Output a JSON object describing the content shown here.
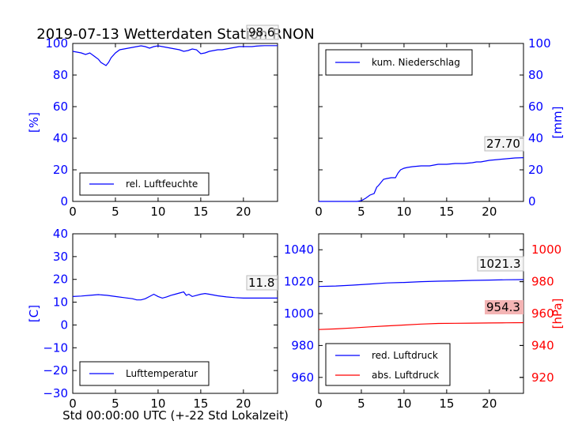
{
  "title": "2019-07-13 Wetterdaten Station RNON",
  "xlabel": "Std 00:00:00 UTC (+-22 Std Lokalzeit)",
  "colors": {
    "axis_blue": "#0000ff",
    "axis_red": "#ff0000",
    "annotation_bg_red": "#f4b4b4"
  },
  "chart_data": [
    {
      "type": "line",
      "panel": "top-left",
      "ylabel": "[%]",
      "xlim": [
        0,
        24
      ],
      "ylim": [
        0,
        100
      ],
      "xticks": [
        "0",
        "5",
        "10",
        "15",
        "20"
      ],
      "yticks": [
        "0",
        "20",
        "40",
        "60",
        "80",
        "100"
      ],
      "legend": {
        "entries": [
          "rel. Luftfeuchte"
        ],
        "location": "lower-left"
      },
      "annotation": "98.6",
      "series": [
        {
          "name": "rel. Luftfeuchte",
          "color": "#0000ff",
          "x": [
            0,
            0.5,
            1,
            1.5,
            2,
            2.5,
            3,
            3.3,
            3.6,
            3.9,
            4.2,
            4.5,
            5,
            5.5,
            6,
            6.5,
            7,
            7.5,
            8,
            8.5,
            9,
            9.5,
            10,
            10.5,
            11,
            11.5,
            12,
            12.5,
            13,
            13.5,
            14,
            14.5,
            15,
            15.5,
            16,
            16.5,
            17,
            17.5,
            18,
            18.5,
            19,
            19.5,
            20,
            20.5,
            21,
            21.5,
            22,
            22.5,
            23,
            23.5,
            24
          ],
          "y": [
            95,
            94.5,
            94,
            93,
            94,
            92,
            90,
            88,
            87,
            86,
            88,
            91,
            94,
            96,
            96.5,
            97,
            97.5,
            98,
            98.5,
            98,
            97,
            98,
            98.5,
            98,
            97.5,
            97,
            96.5,
            96,
            95,
            95.5,
            96.5,
            96,
            93.5,
            94,
            95,
            95.5,
            96,
            96,
            96.5,
            97,
            97.5,
            98,
            98,
            98,
            98,
            98.3,
            98.5,
            98.6,
            98.6,
            98.6,
            98.6
          ]
        }
      ]
    },
    {
      "type": "line",
      "panel": "top-right",
      "ylabel": "[mm]",
      "xlim": [
        0,
        24
      ],
      "ylim": [
        0,
        100
      ],
      "xticks": [
        "0",
        "5",
        "10",
        "15",
        "20"
      ],
      "yticks": [
        "0",
        "20",
        "40",
        "60",
        "80",
        "100"
      ],
      "legend": {
        "entries": [
          "kum. Niederschlag"
        ],
        "location": "upper-left"
      },
      "annotation": "27.70",
      "series": [
        {
          "name": "kum. Niederschlag",
          "color": "#0000ff",
          "x": [
            0,
            4.5,
            5,
            5.5,
            6,
            6.5,
            6.8,
            7,
            7.3,
            7.6,
            8,
            8.5,
            9,
            9.3,
            9.6,
            10,
            10.4,
            11,
            12,
            13,
            13.5,
            14,
            15,
            16,
            17,
            18,
            18.5,
            19,
            20,
            21,
            22,
            23,
            24
          ],
          "y": [
            0,
            0,
            0.5,
            2,
            4,
            5,
            9,
            10,
            12,
            14,
            14.5,
            15,
            15,
            18,
            20,
            21,
            21.5,
            22,
            22.5,
            22.5,
            23,
            23.5,
            23.5,
            24,
            24,
            24.5,
            25,
            25,
            26,
            26.5,
            27,
            27.5,
            27.7
          ]
        }
      ]
    },
    {
      "type": "line",
      "panel": "bottom-left",
      "ylabel": "[C]",
      "xlim": [
        0,
        24
      ],
      "ylim": [
        -30,
        40
      ],
      "xticks": [
        "0",
        "5",
        "10",
        "15",
        "20"
      ],
      "yticks": [
        "−30",
        "−20",
        "−10",
        "0",
        "10",
        "20",
        "30",
        "40"
      ],
      "legend": {
        "entries": [
          "Lufttemperatur"
        ],
        "location": "lower-left"
      },
      "annotation": "11.8",
      "series": [
        {
          "name": "Lufttemperatur",
          "color": "#0000ff",
          "x": [
            0,
            1,
            2,
            3,
            4,
            5,
            6,
            7,
            7.5,
            8,
            8.5,
            9,
            9.5,
            10,
            10.5,
            11,
            11.5,
            12,
            12.5,
            13,
            13.3,
            13.6,
            14,
            15,
            15.5,
            16,
            17,
            18,
            19,
            20,
            21,
            22,
            23,
            24
          ],
          "y": [
            12.5,
            12.7,
            13,
            13.3,
            13,
            12.5,
            12,
            11.5,
            11,
            11,
            11.5,
            12.5,
            13.5,
            12.5,
            11.8,
            12.3,
            13,
            13.5,
            14,
            14.5,
            13,
            13.5,
            12.5,
            13.5,
            13.8,
            13.5,
            12.8,
            12.3,
            12,
            11.8,
            11.8,
            11.8,
            11.8,
            11.8
          ]
        }
      ]
    },
    {
      "type": "line",
      "panel": "bottom-right",
      "ylabel": "[hPa]",
      "xlim": [
        0,
        24
      ],
      "ylim": [
        950,
        1050
      ],
      "ylim_right": [
        910,
        1010
      ],
      "xticks": [
        "0",
        "5",
        "10",
        "15",
        "20"
      ],
      "yticks": [
        "960",
        "980",
        "1000",
        "1020",
        "1040"
      ],
      "yticks_right": [
        "920",
        "940",
        "960",
        "980",
        "1000"
      ],
      "legend": {
        "entries": [
          "red. Luftdruck",
          "abs. Luftdruck"
        ],
        "location": "lower-left"
      },
      "annotations": [
        "1021.3",
        "954.3"
      ],
      "series": [
        {
          "name": "red. Luftdruck",
          "color": "#0000ff",
          "axis": "left",
          "x": [
            0,
            2,
            4,
            6,
            8,
            10,
            12,
            14,
            16,
            18,
            20,
            22,
            24
          ],
          "y": [
            1017,
            1017.3,
            1017.8,
            1018.5,
            1019.2,
            1019.5,
            1020,
            1020.3,
            1020.5,
            1020.8,
            1021,
            1021.2,
            1021.3
          ]
        },
        {
          "name": "abs. Luftdruck",
          "color": "#ff0000",
          "axis": "right",
          "x": [
            0,
            2,
            4,
            6,
            8,
            10,
            12,
            14,
            16,
            18,
            20,
            22,
            24
          ],
          "y": [
            950,
            950.4,
            951,
            951.7,
            952.3,
            952.8,
            953.4,
            953.8,
            953.9,
            954,
            954.1,
            954.2,
            954.3
          ]
        }
      ]
    }
  ]
}
